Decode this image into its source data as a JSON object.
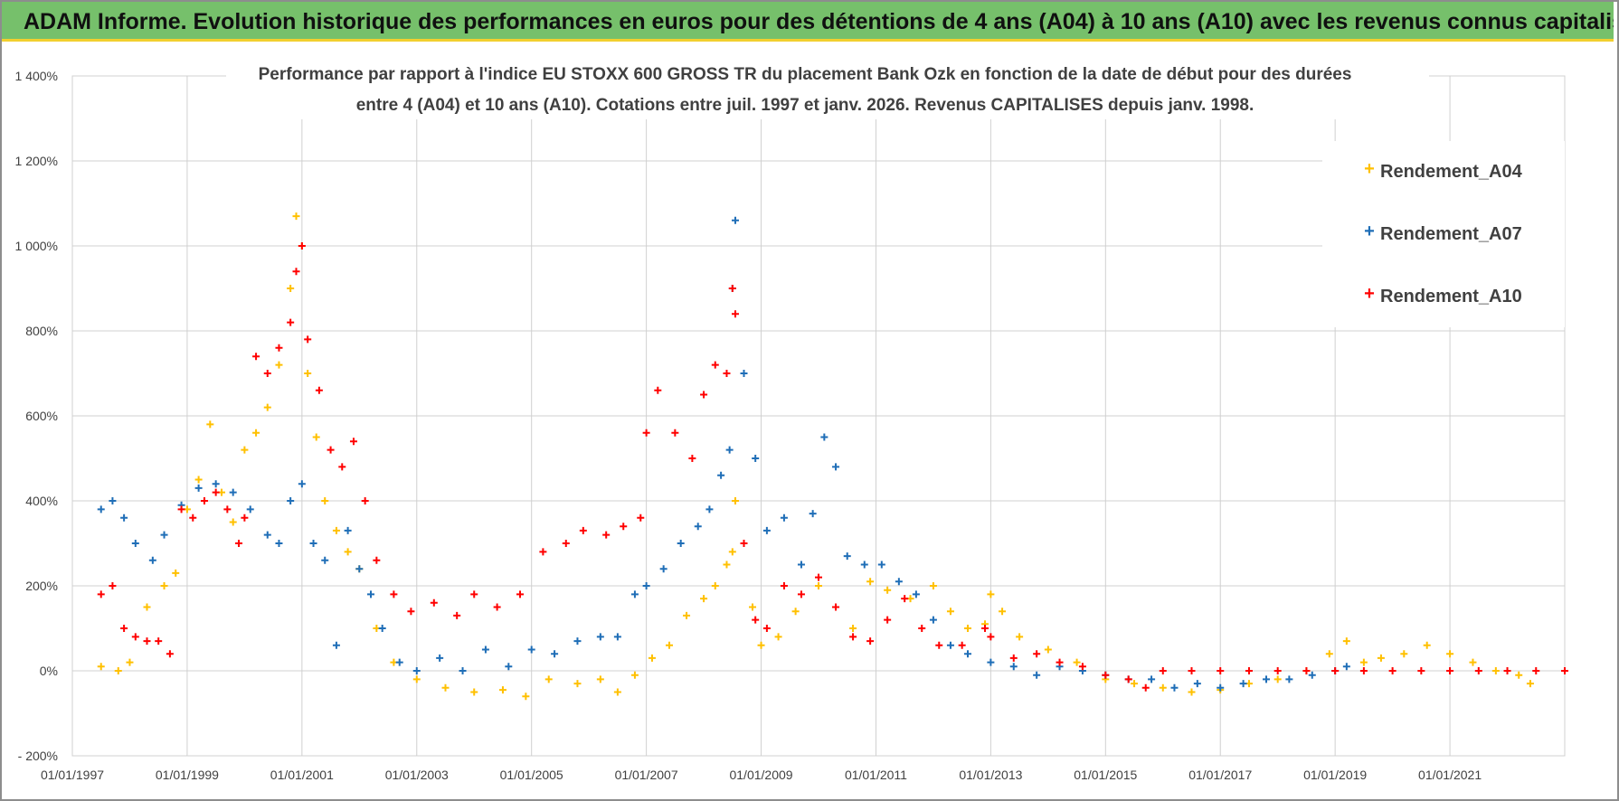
{
  "banner": {
    "title": "ADAM Informe. Evolution historique des performances en euros pour des détentions de 4 ans (A04) à 10 ans (A10) avec les revenus connus capitalisés"
  },
  "colors": {
    "A04": "#ffc000",
    "A07": "#1f6eb7",
    "A10": "#ff0000",
    "banner": "#76c06b",
    "banner_border": "#f2cf2f",
    "grid": "#d0d0d0"
  },
  "chart_data": {
    "type": "scatter",
    "title_line1": "Performance par rapport à l'indice EU STOXX 600 GROSS TR  du placement Bank Ozk en fonction de la date de début pour des durées",
    "title_line2": "entre 4 (A04) et 10 ans (A10). Cotations entre juil. 1997 et janv. 2026. Revenus CAPITALISES depuis janv. 1998.",
    "xlabel": "",
    "ylabel": "",
    "xlim": [
      1997.0,
      2023.0
    ],
    "ylim": [
      -200,
      1400
    ],
    "y_ticks": [
      -200,
      0,
      200,
      400,
      600,
      800,
      1000,
      1200,
      1400
    ],
    "y_tick_labels": [
      "- 200%",
      "0%",
      "200%",
      "400%",
      "600%",
      "800%",
      "1 000%",
      "1 200%",
      "1 400%"
    ],
    "x_ticks": [
      1997,
      1999,
      2001,
      2003,
      2005,
      2007,
      2009,
      2011,
      2013,
      2015,
      2017,
      2019,
      2021
    ],
    "x_tick_labels": [
      "01/01/1997",
      "01/01/1999",
      "01/01/2001",
      "01/01/2003",
      "01/01/2005",
      "01/01/2007",
      "01/01/2009",
      "01/01/2011",
      "01/01/2013",
      "01/01/2015",
      "01/01/2017",
      "01/01/2019",
      "01/01/2021"
    ],
    "grid": true,
    "legend_position": "top-right",
    "marker": "+",
    "series": [
      {
        "name": "Rendement_A04",
        "color": "#ffc000",
        "x": [
          1997.5,
          1997.8,
          1998.0,
          1998.3,
          1998.6,
          1998.8,
          1999.0,
          1999.2,
          1999.4,
          1999.6,
          1999.8,
          2000.0,
          2000.2,
          2000.4,
          2000.6,
          2000.8,
          2000.9,
          2001.0,
          2001.1,
          2001.25,
          2001.4,
          2001.6,
          2001.8,
          2002.0,
          2002.3,
          2002.6,
          2003.0,
          2003.5,
          2004.0,
          2004.5,
          2004.9,
          2005.3,
          2005.8,
          2006.2,
          2006.5,
          2006.8,
          2007.1,
          2007.4,
          2007.7,
          2008.0,
          2008.2,
          2008.4,
          2008.5,
          2008.55,
          2008.7,
          2008.85,
          2009.0,
          2009.3,
          2009.6,
          2010.0,
          2010.3,
          2010.6,
          2010.9,
          2011.2,
          2011.6,
          2012.0,
          2012.3,
          2012.6,
          2012.9,
          2013.0,
          2013.2,
          2013.5,
          2014.0,
          2014.5,
          2015.0,
          2015.5,
          2016.0,
          2016.5,
          2017.0,
          2017.5,
          2018.0,
          2018.5,
          2018.9,
          2019.2,
          2019.5,
          2019.8,
          2020.2,
          2020.6,
          2021.0,
          2021.4,
          2021.8,
          2022.2,
          2022.4
        ],
        "y": [
          10,
          0,
          20,
          150,
          200,
          230,
          380,
          450,
          580,
          420,
          350,
          520,
          560,
          620,
          720,
          900,
          1070,
          1000,
          700,
          550,
          400,
          330,
          280,
          240,
          100,
          20,
          -20,
          -40,
          -50,
          -45,
          -60,
          -20,
          -30,
          -20,
          -50,
          -10,
          30,
          60,
          130,
          170,
          200,
          250,
          280,
          400,
          300,
          150,
          60,
          80,
          140,
          200,
          150,
          100,
          210,
          190,
          170,
          200,
          140,
          100,
          110,
          180,
          140,
          80,
          50,
          20,
          -20,
          -30,
          -40,
          -50,
          -45,
          -30,
          -20,
          0,
          40,
          70,
          20,
          30,
          40,
          60,
          40,
          20,
          0,
          -10,
          -30
        ]
      },
      {
        "name": "Rendement_A07",
        "color": "#1f6eb7",
        "x": [
          1997.5,
          1997.7,
          1997.9,
          1998.1,
          1998.4,
          1998.6,
          1998.9,
          1999.2,
          1999.5,
          1999.8,
          2000.1,
          2000.4,
          2000.6,
          2000.8,
          2001.0,
          2001.2,
          2001.4,
          2001.6,
          2001.8,
          2002.0,
          2002.2,
          2002.4,
          2002.7,
          2003.0,
          2003.4,
          2003.8,
          2004.2,
          2004.6,
          2005.0,
          2005.4,
          2005.8,
          2006.2,
          2006.5,
          2006.8,
          2007.0,
          2007.3,
          2007.6,
          2007.9,
          2008.1,
          2008.3,
          2008.45,
          2008.5,
          2008.55,
          2008.7,
          2008.9,
          2009.1,
          2009.4,
          2009.7,
          2009.9,
          2010.1,
          2010.3,
          2010.5,
          2010.8,
          2011.1,
          2011.4,
          2011.7,
          2012.0,
          2012.3,
          2012.6,
          2013.0,
          2013.4,
          2013.8,
          2014.2,
          2014.6,
          2015.0,
          2015.4,
          2015.8,
          2016.2,
          2016.6,
          2017.0,
          2017.4,
          2017.8,
          2018.2,
          2018.6,
          2019.0,
          2019.2
        ],
        "y": [
          380,
          400,
          360,
          300,
          260,
          320,
          390,
          430,
          440,
          420,
          380,
          320,
          300,
          400,
          440,
          300,
          260,
          60,
          330,
          240,
          180,
          100,
          20,
          0,
          30,
          0,
          50,
          10,
          50,
          40,
          70,
          80,
          80,
          180,
          200,
          240,
          300,
          340,
          380,
          460,
          520,
          900,
          1060,
          700,
          500,
          330,
          360,
          250,
          370,
          550,
          480,
          270,
          250,
          250,
          210,
          180,
          120,
          60,
          40,
          20,
          10,
          -10,
          10,
          0,
          -10,
          -20,
          -20,
          -40,
          -30,
          -40,
          -30,
          -20,
          -20,
          -10,
          0,
          10
        ]
      },
      {
        "name": "Rendement_A10",
        "color": "#ff0000",
        "x": [
          1997.5,
          1997.7,
          1997.9,
          1998.1,
          1998.3,
          1998.5,
          1998.7,
          1998.9,
          1999.1,
          1999.3,
          1999.5,
          1999.7,
          1999.9,
          2000.0,
          2000.2,
          2000.4,
          2000.6,
          2000.8,
          2000.9,
          2001.0,
          2001.1,
          2001.3,
          2001.5,
          2001.7,
          2001.9,
          2002.1,
          2002.3,
          2002.6,
          2002.9,
          2003.3,
          2003.7,
          2004.0,
          2004.4,
          2004.8,
          2005.2,
          2005.6,
          2005.9,
          2006.3,
          2006.6,
          2006.9,
          2007.0,
          2007.2,
          2007.5,
          2007.8,
          2008.0,
          2008.2,
          2008.4,
          2008.5,
          2008.55,
          2008.7,
          2008.9,
          2009.1,
          2009.4,
          2009.7,
          2010.0,
          2010.3,
          2010.6,
          2010.9,
          2011.2,
          2011.5,
          2011.8,
          2012.1,
          2012.5,
          2012.9,
          2013.0,
          2013.4,
          2013.8,
          2014.2,
          2014.6,
          2015.0,
          2015.4,
          2015.7,
          2016.0,
          2016.5,
          2017.0,
          2017.5,
          2018.0,
          2018.5,
          2019.0,
          2019.5,
          2020.0,
          2020.5,
          2021.0,
          2021.5,
          2022.0,
          2022.5,
          2023.0
        ],
        "y": [
          180,
          200,
          100,
          80,
          70,
          70,
          40,
          380,
          360,
          400,
          420,
          380,
          300,
          360,
          740,
          700,
          760,
          820,
          940,
          1000,
          780,
          660,
          520,
          480,
          540,
          400,
          260,
          180,
          140,
          160,
          130,
          180,
          150,
          180,
          280,
          300,
          330,
          320,
          340,
          360,
          560,
          660,
          560,
          500,
          650,
          720,
          700,
          900,
          840,
          300,
          120,
          100,
          200,
          180,
          220,
          150,
          80,
          70,
          120,
          170,
          100,
          60,
          60,
          100,
          80,
          30,
          40,
          20,
          10,
          -10,
          -20,
          -40,
          0,
          0,
          0,
          0,
          0,
          0,
          0,
          0,
          0,
          0,
          0,
          0,
          0,
          0,
          0
        ]
      }
    ]
  }
}
